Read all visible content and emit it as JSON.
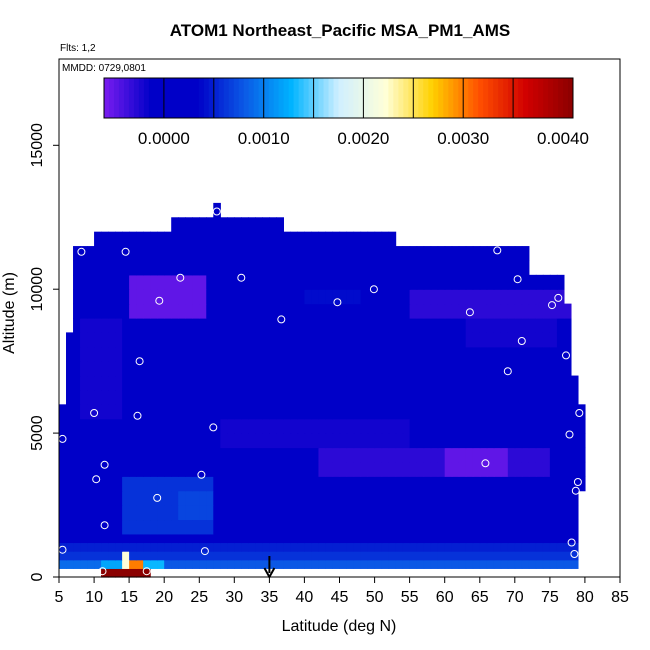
{
  "chart_data": {
    "type": "heatmap",
    "title": "ATOM1 Northeast_Pacific MSA_PM1_AMS",
    "flights_label": "Flts: 1,2",
    "dates_label": "MMDD: 0729,0801",
    "xlabel": "Latitude (deg N)",
    "ylabel": "Altitude (m)",
    "xlim": [
      5,
      85
    ],
    "ylim": [
      0,
      18000
    ],
    "x_ticks": [
      "5",
      "10",
      "15",
      "20",
      "25",
      "30",
      "35",
      "40",
      "45",
      "50",
      "55",
      "60",
      "65",
      "70",
      "75",
      "80",
      "85"
    ],
    "y_ticks": [
      "0",
      "5000",
      "10000",
      "15000"
    ],
    "colorbar": {
      "range": [
        -0.0006,
        0.0041
      ],
      "tick_labels": [
        "0.0000",
        "0.0010",
        "0.0020",
        "0.0030",
        "0.0040"
      ],
      "tick_values": [
        0,
        0.001,
        0.002,
        0.003,
        0.004
      ],
      "colors": [
        "#7a1cf0",
        "#0000c8",
        "#0000c8",
        "#0b5ae6",
        "#00b4ff",
        "#cfefff",
        "#ffffd8",
        "#ffd000",
        "#ff5000",
        "#d00000",
        "#8b0000"
      ]
    },
    "marker_latitude": 35,
    "altitude_bins_m": [
      0,
      300,
      600,
      900,
      1200,
      1500,
      2000,
      2500,
      3000,
      3500,
      4000,
      4500,
      5000,
      5500,
      6000,
      6500,
      7000,
      7500,
      8000,
      8500,
      9000,
      9500,
      10000,
      10500,
      11000,
      11500,
      12000,
      12500
    ],
    "profile_extent": [
      {
        "lat_min": 11,
        "lat_max": 18,
        "alt_min": 0,
        "alt_max": 300
      },
      {
        "lat_min": 5,
        "lat_max": 79,
        "alt_min": 300,
        "alt_max": 3000
      },
      {
        "lat_min": 5,
        "lat_max": 80,
        "alt_min": 3000,
        "alt_max": 6000
      },
      {
        "lat_min": 6,
        "lat_max": 79,
        "alt_min": 6000,
        "alt_max": 7000
      },
      {
        "lat_min": 6.5,
        "lat_max": 78.5,
        "alt_min": 7000,
        "alt_max": 8500
      },
      {
        "lat_min": 7,
        "lat_max": 78,
        "alt_min": 8500,
        "alt_max": 9500
      },
      {
        "lat_min": 7.5,
        "lat_max": 77,
        "alt_min": 9500,
        "alt_max": 10500
      },
      {
        "lat_min": 7.5,
        "lat_max": 72,
        "alt_min": 10500,
        "alt_max": 11500
      },
      {
        "lat_min": 10,
        "lat_max": 53.5,
        "alt_min": 11500,
        "alt_max": 12000
      },
      {
        "lat_min": 21,
        "lat_max": 37,
        "alt_min": 12000,
        "alt_max": 12500
      },
      {
        "lat_min": 27,
        "lat_max": 28,
        "alt_min": 12500,
        "alt_max": 13000
      }
    ],
    "mean_by_altitude": [
      {
        "alt_min": 0,
        "alt_max": 300,
        "value": 0.0035
      },
      {
        "alt_min": 300,
        "alt_max": 600,
        "value": 0.0008
      },
      {
        "alt_min": 600,
        "alt_max": 900,
        "value": 0.0006
      },
      {
        "alt_min": 900,
        "alt_max": 1200,
        "value": 0.0005
      },
      {
        "alt_min": 1200,
        "alt_max": 2000,
        "value": 0.0003
      },
      {
        "alt_min": 2000,
        "alt_max": 3500,
        "value": 0.0002
      },
      {
        "alt_min": 3500,
        "alt_max": 6000,
        "value": 0.0001
      },
      {
        "alt_min": 6000,
        "alt_max": 12500,
        "value": 0.0
      }
    ],
    "anomalies": [
      {
        "lat_min": 11,
        "lat_max": 19,
        "alt_min": 0,
        "alt_max": 300,
        "value": 0.0041
      },
      {
        "lat_min": 14,
        "lat_max": 15,
        "alt_min": 300,
        "alt_max": 900,
        "value": 0.0022
      },
      {
        "lat_min": 15,
        "lat_max": 17,
        "alt_min": 300,
        "alt_max": 600,
        "value": 0.003
      },
      {
        "lat_min": 11,
        "lat_max": 14,
        "alt_min": 300,
        "alt_max": 600,
        "value": 0.0012
      },
      {
        "lat_min": 17,
        "lat_max": 20,
        "alt_min": 300,
        "alt_max": 600,
        "value": 0.0013
      },
      {
        "lat_min": 5,
        "lat_max": 11,
        "alt_min": 300,
        "alt_max": 600,
        "value": 0.0009
      },
      {
        "lat_min": 14,
        "lat_max": 27,
        "alt_min": 1500,
        "alt_max": 3500,
        "value": 0.0006
      },
      {
        "lat_min": 22,
        "lat_max": 27,
        "alt_min": 2000,
        "alt_max": 3000,
        "value": 0.0007
      },
      {
        "lat_min": 30,
        "lat_max": 55,
        "alt_min": 2500,
        "alt_max": 3500,
        "value": 0.0003
      },
      {
        "lat_min": 42,
        "lat_max": 75,
        "alt_min": 3500,
        "alt_max": 4500,
        "value": -0.0003
      },
      {
        "lat_min": 60,
        "lat_max": 69,
        "alt_min": 3500,
        "alt_max": 4500,
        "value": -0.0005
      },
      {
        "lat_min": 28,
        "lat_max": 55,
        "alt_min": 4500,
        "alt_max": 5500,
        "value": -0.0002
      },
      {
        "lat_min": 8,
        "lat_max": 14,
        "alt_min": 5500,
        "alt_max": 9000,
        "value": -0.0002
      },
      {
        "lat_min": 15,
        "lat_max": 26,
        "alt_min": 9000,
        "alt_max": 10500,
        "value": -0.0005
      },
      {
        "lat_min": 40,
        "lat_max": 48,
        "alt_min": 9500,
        "alt_max": 10000,
        "value": 0.0004
      },
      {
        "lat_min": 55,
        "lat_max": 78,
        "alt_min": 9000,
        "alt_max": 10000,
        "value": -0.0003
      },
      {
        "lat_min": 63,
        "lat_max": 76,
        "alt_min": 8000,
        "alt_max": 9000,
        "value": -0.0002
      }
    ],
    "sample_points": [
      {
        "lat": 5.5,
        "alt": 4800
      },
      {
        "lat": 5.5,
        "alt": 950
      },
      {
        "lat": 8.2,
        "alt": 11300
      },
      {
        "lat": 10.0,
        "alt": 5700
      },
      {
        "lat": 10.3,
        "alt": 3400
      },
      {
        "lat": 11.5,
        "alt": 3900
      },
      {
        "lat": 11.5,
        "alt": 1800
      },
      {
        "lat": 11.2,
        "alt": 200
      },
      {
        "lat": 14.5,
        "alt": 11300
      },
      {
        "lat": 16.2,
        "alt": 5600
      },
      {
        "lat": 16.5,
        "alt": 7500
      },
      {
        "lat": 17.5,
        "alt": 200
      },
      {
        "lat": 19.0,
        "alt": 2750
      },
      {
        "lat": 19.3,
        "alt": 9600
      },
      {
        "lat": 22.3,
        "alt": 10400
      },
      {
        "lat": 25.3,
        "alt": 3550
      },
      {
        "lat": 25.8,
        "alt": 900
      },
      {
        "lat": 27.0,
        "alt": 5200
      },
      {
        "lat": 27.5,
        "alt": 12700
      },
      {
        "lat": 31.0,
        "alt": 10400
      },
      {
        "lat": 36.7,
        "alt": 8950
      },
      {
        "lat": 44.7,
        "alt": 9550
      },
      {
        "lat": 49.9,
        "alt": 10000
      },
      {
        "lat": 63.6,
        "alt": 9200
      },
      {
        "lat": 65.8,
        "alt": 3950
      },
      {
        "lat": 67.5,
        "alt": 11350
      },
      {
        "lat": 69.0,
        "alt": 7150
      },
      {
        "lat": 70.4,
        "alt": 10350
      },
      {
        "lat": 71.0,
        "alt": 8200
      },
      {
        "lat": 75.3,
        "alt": 9450
      },
      {
        "lat": 76.2,
        "alt": 9700
      },
      {
        "lat": 77.3,
        "alt": 7700
      },
      {
        "lat": 77.8,
        "alt": 4950
      },
      {
        "lat": 78.1,
        "alt": 1200
      },
      {
        "lat": 78.5,
        "alt": 800
      },
      {
        "lat": 78.7,
        "alt": 3000
      },
      {
        "lat": 79.0,
        "alt": 3300
      },
      {
        "lat": 79.2,
        "alt": 5700
      }
    ]
  }
}
